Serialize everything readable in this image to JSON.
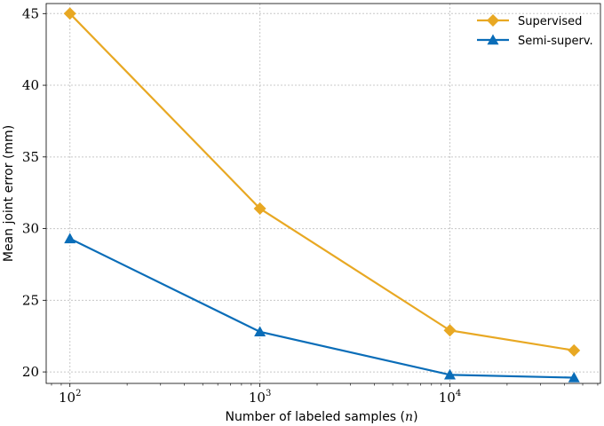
{
  "chart_data": {
    "type": "line",
    "xscale": "log",
    "xlabel": "Number of labeled samples (",
    "xlabel_var": "n",
    "xlabel_close": ")",
    "ylabel": "Mean joint error (mm)",
    "xlim": [
      75,
      62000
    ],
    "ylim": [
      19.2,
      45.7
    ],
    "yticks": [
      20,
      25,
      30,
      35,
      40,
      45
    ],
    "xticks": [
      {
        "value": 100,
        "base": "10",
        "exp": "2"
      },
      {
        "value": 1000,
        "base": "10",
        "exp": "3"
      },
      {
        "value": 10000,
        "base": "10",
        "exp": "4"
      }
    ],
    "grid": true,
    "legend_position": "top-right",
    "series": [
      {
        "name": "Supervised",
        "color": "#E8A823",
        "marker": "diamond",
        "x": [
          100,
          1000,
          10000,
          45000
        ],
        "y": [
          45.0,
          31.4,
          22.9,
          21.5
        ]
      },
      {
        "name": "Semi-superv.",
        "color": "#0A6DB8",
        "marker": "triangle",
        "x": [
          100,
          1000,
          10000,
          45000
        ],
        "y": [
          29.3,
          22.8,
          19.8,
          19.6
        ]
      }
    ]
  }
}
